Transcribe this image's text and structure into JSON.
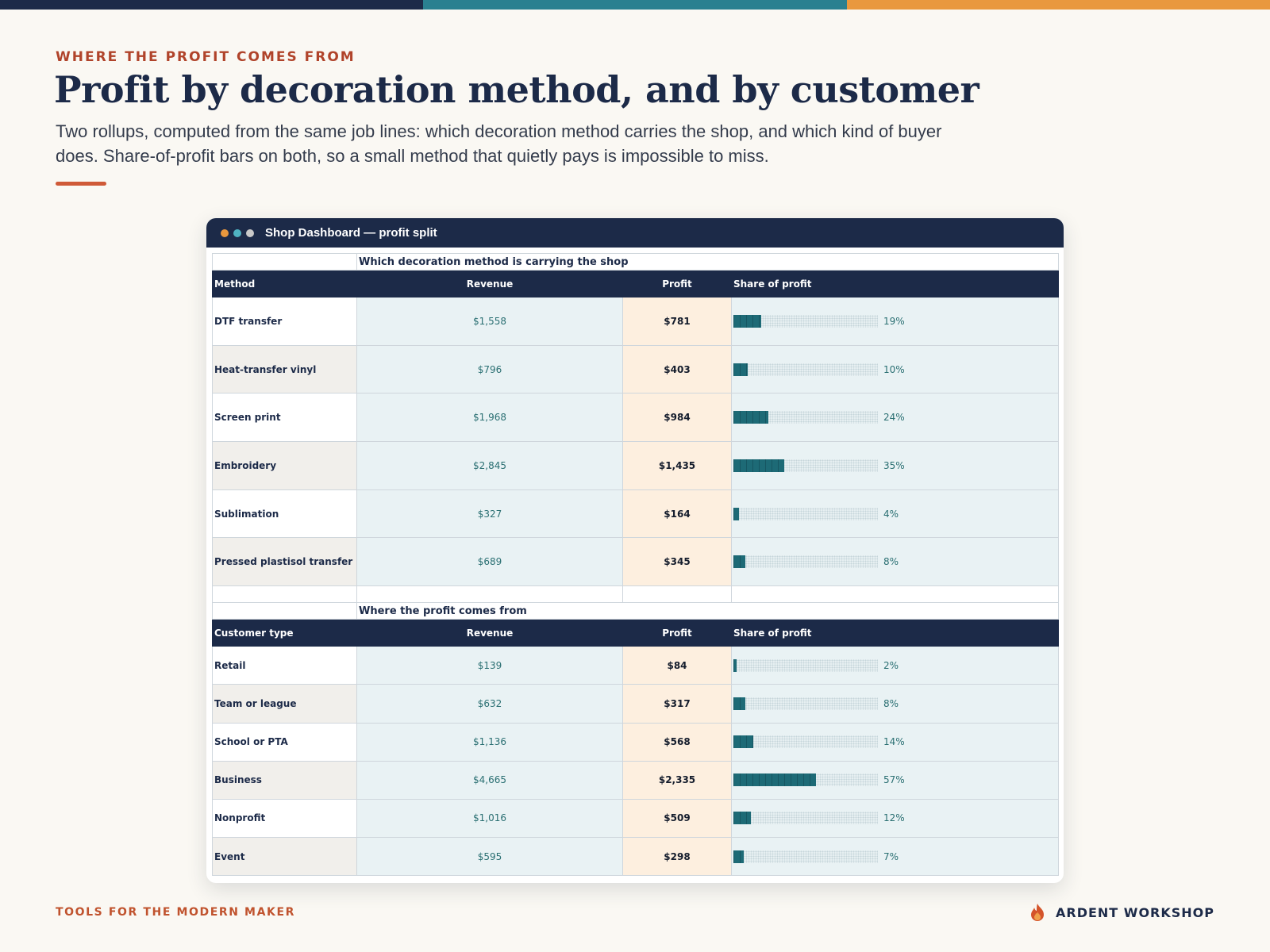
{
  "colors": {
    "navy": "#1c2a48",
    "teal": "#2a8090",
    "orange": "#e9983e",
    "accent_red": "#cf5a38"
  },
  "header": {
    "eyebrow": "WHERE THE PROFIT COMES FROM",
    "title": "Profit by decoration method, and by customer",
    "lede": "Two rollups, computed from the same job lines: which decoration method carries the shop, and which kind of buyer does. Share-of-profit bars on both, so a small method that quietly pays is impossible to miss."
  },
  "window": {
    "title": "Shop Dashboard — profit split",
    "dots": [
      "#e9983e",
      "#4fb3c2",
      "#c9c9c9"
    ]
  },
  "methods": {
    "caption": "Which decoration method is carrying the shop",
    "headers": {
      "name": "Method",
      "revenue": "Revenue",
      "profit": "Profit",
      "share": "Share of profit"
    },
    "rows": [
      {
        "name": "DTF transfer",
        "revenue": "$1,558",
        "profit": "$781",
        "share_label": "19%",
        "share": 0.19
      },
      {
        "name": "Heat-transfer vinyl",
        "revenue": "$796",
        "profit": "$403",
        "share_label": "10%",
        "share": 0.1
      },
      {
        "name": "Screen print",
        "revenue": "$1,968",
        "profit": "$984",
        "share_label": "24%",
        "share": 0.24
      },
      {
        "name": "Embroidery",
        "revenue": "$2,845",
        "profit": "$1,435",
        "share_label": "35%",
        "share": 0.35
      },
      {
        "name": "Sublimation",
        "revenue": "$327",
        "profit": "$164",
        "share_label": "4%",
        "share": 0.04
      },
      {
        "name": "Pressed plastisol transfer",
        "revenue": "$689",
        "profit": "$345",
        "share_label": "8%",
        "share": 0.08
      }
    ]
  },
  "customers": {
    "caption": "Where the profit comes from",
    "headers": {
      "name": "Customer type",
      "revenue": "Revenue",
      "profit": "Profit",
      "share": "Share of profit"
    },
    "rows": [
      {
        "name": "Retail",
        "revenue": "$139",
        "profit": "$84",
        "share_label": "2%",
        "share": 0.02
      },
      {
        "name": "Team or league",
        "revenue": "$632",
        "profit": "$317",
        "share_label": "8%",
        "share": 0.08
      },
      {
        "name": "School or PTA",
        "revenue": "$1,136",
        "profit": "$568",
        "share_label": "14%",
        "share": 0.14
      },
      {
        "name": "Business",
        "revenue": "$4,665",
        "profit": "$2,335",
        "share_label": "57%",
        "share": 0.57
      },
      {
        "name": "Nonprofit",
        "revenue": "$1,016",
        "profit": "$509",
        "share_label": "12%",
        "share": 0.12
      },
      {
        "name": "Event",
        "revenue": "$595",
        "profit": "$298",
        "share_label": "7%",
        "share": 0.07
      }
    ]
  },
  "footer": {
    "tagline": "TOOLS FOR THE MODERN MAKER",
    "brand": "ARDENT WORKSHOP",
    "brand_icon": "flame-icon"
  }
}
